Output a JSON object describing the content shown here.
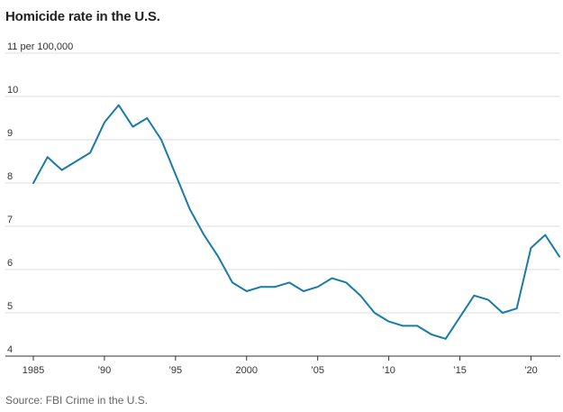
{
  "chart_data": {
    "type": "line",
    "title": "Homicide rate in the U.S.",
    "unit_label": "11 per 100,000",
    "source": "Source: FBI Crime in the U.S.",
    "line_color": "#1a7aa8",
    "ylim": [
      4,
      11
    ],
    "y_ticks": [
      {
        "value": 4,
        "label": "4"
      },
      {
        "value": 5,
        "label": "5"
      },
      {
        "value": 6,
        "label": "6"
      },
      {
        "value": 7,
        "label": "7"
      },
      {
        "value": 8,
        "label": "8"
      },
      {
        "value": 9,
        "label": "9"
      },
      {
        "value": 10,
        "label": "10"
      },
      {
        "value": 11,
        "label": "11 per 100,000"
      }
    ],
    "xlim": [
      1985,
      2022
    ],
    "x_ticks": [
      {
        "value": 1985,
        "label": "1985"
      },
      {
        "value": 1990,
        "label": "’90"
      },
      {
        "value": 1995,
        "label": "’95"
      },
      {
        "value": 2000,
        "label": "2000"
      },
      {
        "value": 2005,
        "label": "’05"
      },
      {
        "value": 2010,
        "label": "’10"
      },
      {
        "value": 2015,
        "label": "’15"
      },
      {
        "value": 2020,
        "label": "’20"
      }
    ],
    "series": [
      {
        "name": "Homicide rate",
        "x": [
          1985,
          1986,
          1987,
          1988,
          1989,
          1990,
          1991,
          1992,
          1993,
          1994,
          1995,
          1996,
          1997,
          1998,
          1999,
          2000,
          2001,
          2002,
          2003,
          2004,
          2005,
          2006,
          2007,
          2008,
          2009,
          2010,
          2011,
          2012,
          2013,
          2014,
          2015,
          2016,
          2017,
          2018,
          2019,
          2020,
          2021,
          2022
        ],
        "values": [
          8.0,
          8.6,
          8.3,
          8.5,
          8.7,
          9.4,
          9.8,
          9.3,
          9.5,
          9.0,
          8.2,
          7.4,
          6.8,
          6.3,
          5.7,
          5.5,
          5.6,
          5.6,
          5.7,
          5.5,
          5.6,
          5.8,
          5.7,
          5.4,
          5.0,
          4.8,
          4.7,
          4.7,
          4.5,
          4.4,
          4.9,
          5.4,
          5.3,
          5.0,
          5.1,
          6.5,
          6.8,
          6.3
        ]
      }
    ]
  }
}
